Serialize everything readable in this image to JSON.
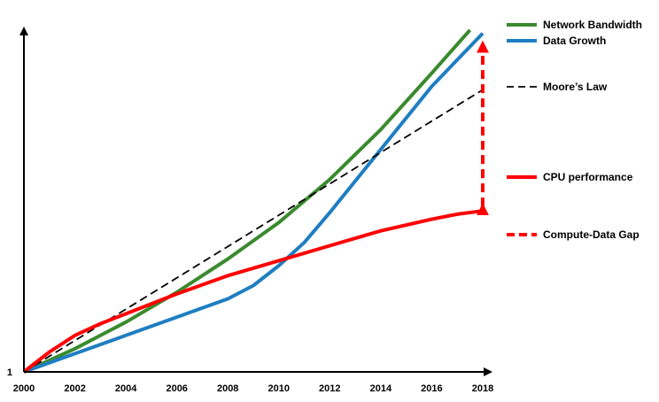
{
  "chart_data": {
    "type": "line",
    "title": "",
    "xlabel": "",
    "ylabel": "",
    "xlim": [
      2000,
      2018
    ],
    "ylim_label": "1",
    "x_ticks": [
      "2000",
      "2002",
      "2004",
      "2006",
      "2008",
      "2010",
      "2012",
      "2014",
      "2016",
      "2018"
    ],
    "y_ticks": [
      "1"
    ],
    "grid": false,
    "legend_position": "right",
    "series": [
      {
        "name": "Network Bandwidth",
        "color": "#3a8a2e",
        "style": "solid",
        "x": [
          2000,
          2002,
          2004,
          2006,
          2008,
          2010,
          2012,
          2014,
          2016,
          2017.5
        ],
        "y": [
          1.0,
          1.7,
          2.5,
          3.4,
          4.4,
          5.5,
          6.8,
          8.3,
          10.0,
          11.3
        ]
      },
      {
        "name": "Data Growth",
        "color": "#1f7ec2",
        "style": "solid",
        "x": [
          2000,
          2002,
          2004,
          2006,
          2008,
          2009,
          2010,
          2011,
          2012,
          2014,
          2016,
          2018
        ],
        "y": [
          1.0,
          1.55,
          2.1,
          2.65,
          3.2,
          3.6,
          4.2,
          4.9,
          5.8,
          7.7,
          9.6,
          11.2
        ]
      },
      {
        "name": "Moore’s Law",
        "color": "#000000",
        "style": "dashed",
        "x": [
          2000,
          2018
        ],
        "y": [
          1.0,
          9.5
        ]
      },
      {
        "name": "CPU performance",
        "color": "#ff0000",
        "style": "solid",
        "x": [
          2000,
          2001,
          2002,
          2003,
          2004,
          2006,
          2008,
          2010,
          2012,
          2014,
          2016,
          2017,
          2018
        ],
        "y": [
          1.0,
          1.6,
          2.1,
          2.45,
          2.75,
          3.35,
          3.9,
          4.35,
          4.8,
          5.25,
          5.6,
          5.75,
          5.85
        ]
      }
    ],
    "gap": {
      "name": "Compute-Data Gap",
      "color": "#ff0000",
      "style": "dashed-double-arrow",
      "x": 2018,
      "y_from": 5.85,
      "y_to": 11.2
    }
  },
  "legend": [
    {
      "label": "Network Bandwidth",
      "color": "#3a8a2e",
      "style": "solid"
    },
    {
      "label": "Data Growth",
      "color": "#1f7ec2",
      "style": "solid"
    },
    {
      "label": "Moore’s Law",
      "color": "#000000",
      "style": "dashed"
    },
    {
      "label": "CPU performance",
      "color": "#ff0000",
      "style": "solid"
    },
    {
      "label": "Compute-Data Gap",
      "color": "#ff0000",
      "style": "dashed-thick"
    }
  ]
}
